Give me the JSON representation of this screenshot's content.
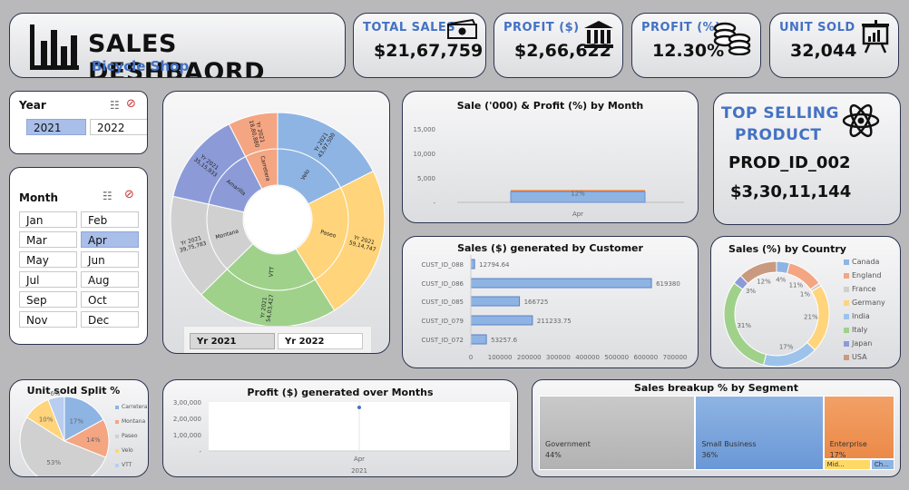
{
  "header": {
    "title": "SALES DESHBAORD",
    "subtitle": "Bicycle Shop"
  },
  "kpis": {
    "total_sales": {
      "label": "TOTAL SALES",
      "value": "$21,67,759"
    },
    "profit_amt": {
      "label": "PROFIT ($)",
      "value": "$2,66,622"
    },
    "profit_pct": {
      "label": "PROFIT (%)",
      "value": "12.30%"
    },
    "unit_sold": {
      "label": "UNIT SOLD",
      "value": "32,044"
    }
  },
  "year_slicer": {
    "title": "Year",
    "items": [
      "2021",
      "2022"
    ],
    "selected": "2021"
  },
  "month_slicer": {
    "title": "Month",
    "items": [
      "Jan",
      "Feb",
      "Mar",
      "Apr",
      "May",
      "Jun",
      "Jul",
      "Aug",
      "Sep",
      "Oct",
      "Nov",
      "Dec"
    ],
    "selected": "Apr"
  },
  "top_product": {
    "title_line1": "TOP SELLING",
    "title_line2": "PRODUCT",
    "product": "PROD_ID_002",
    "value": "$3,30,11,144"
  },
  "sunburst_tabs": [
    "Yr 2021",
    "Yr 2022"
  ],
  "colors": {
    "blue": "#8eb4e3",
    "orange": "#f4a582",
    "gray": "#d0d0d0",
    "yellow": "#ffd47a",
    "green": "#9fd18b",
    "navy": "#8c9bd8",
    "brown": "#c99a80",
    "accent": "#4472c4"
  },
  "chart_data": [
    {
      "id": "sunburst",
      "type": "sunburst",
      "title": "",
      "segments": [
        {
          "name": "Velo",
          "value": 4397500,
          "label": "Yr 2021\n43,97,500"
        },
        {
          "name": "Paseo",
          "value": 5914747,
          "label": "Yr 2021\n59,14,747"
        },
        {
          "name": "VTT",
          "value": 5403427,
          "label": "Yr 2021\n54,03,427"
        },
        {
          "name": "Montana",
          "value": 3975783,
          "label": "Yr 2021\n39,75,783"
        },
        {
          "name": "Amarilla",
          "value": 3515933,
          "label": "Yr 2021\n35,15,933"
        },
        {
          "name": "Carretera",
          "value": 1880880,
          "label": "Yr 2021\n18,80,880"
        }
      ]
    },
    {
      "id": "sales_profit_month",
      "type": "bar",
      "title": "Sale ('000) & Profit (%) by Month",
      "categories": [
        "Apr"
      ],
      "values": [
        2168
      ],
      "line_values": [
        12
      ],
      "line_label": "12%",
      "ylim": [
        0,
        15000
      ],
      "yticks": [
        "15,000",
        "10,000",
        "5,000",
        "-"
      ]
    },
    {
      "id": "sales_customer",
      "type": "bar",
      "orientation": "horizontal",
      "title": "Sales ($) generated by Customer",
      "categories": [
        "CUST_ID_088",
        "CUST_ID_086",
        "CUST_ID_085",
        "CUST_ID_079",
        "CUST_ID_072"
      ],
      "values": [
        12794.64,
        619380,
        166725,
        211233.75,
        53257.6
      ],
      "value_labels": [
        "12794.64",
        "619380",
        "166725",
        "211233.75",
        "53257.6"
      ],
      "xlim": [
        0,
        700000
      ],
      "xticks": [
        "0",
        "100000",
        "200000",
        "300000",
        "400000",
        "500000",
        "600000",
        "700000"
      ]
    },
    {
      "id": "sales_country",
      "type": "pie",
      "variant": "donut",
      "title": "Sales (%) by Country",
      "categories": [
        "Canada",
        "England",
        "France",
        "Germany",
        "India",
        "Italy",
        "Japan",
        "USA"
      ],
      "values": [
        4,
        11,
        1,
        21,
        17,
        31,
        3,
        12
      ],
      "labels": [
        "4%",
        "11%",
        "1%",
        "21%",
        "17%",
        "31%",
        "3%",
        "12%"
      ]
    },
    {
      "id": "unit_split",
      "type": "pie",
      "title": "Unit sold Split %",
      "categories": [
        "Carretera",
        "Montana",
        "Paseo",
        "Velo",
        "VTT"
      ],
      "values": [
        17,
        14,
        53,
        10,
        6
      ],
      "labels": [
        "17%",
        "14%",
        "53%",
        "10%",
        "6%"
      ]
    },
    {
      "id": "profit_months",
      "type": "line",
      "title": "Profit ($) generated over Months",
      "categories": [
        "Apr"
      ],
      "values": [
        266622
      ],
      "ylim": [
        0,
        300000
      ],
      "yticks": [
        "3,00,000",
        "2,00,000",
        "1,00,000",
        "-"
      ],
      "xlabel": "2021"
    },
    {
      "id": "segment_treemap",
      "type": "treemap",
      "title": "Sales breakup % by Segment",
      "items": [
        {
          "name": "Government",
          "pct": "44%",
          "value": 44
        },
        {
          "name": "Small Business",
          "pct": "36%",
          "value": 36
        },
        {
          "name": "Enterprise",
          "pct": "17%",
          "value": 17
        },
        {
          "name": "Mid...",
          "pct": "",
          "value": 2
        },
        {
          "name": "Ch...",
          "pct": "",
          "value": 1
        }
      ]
    }
  ]
}
